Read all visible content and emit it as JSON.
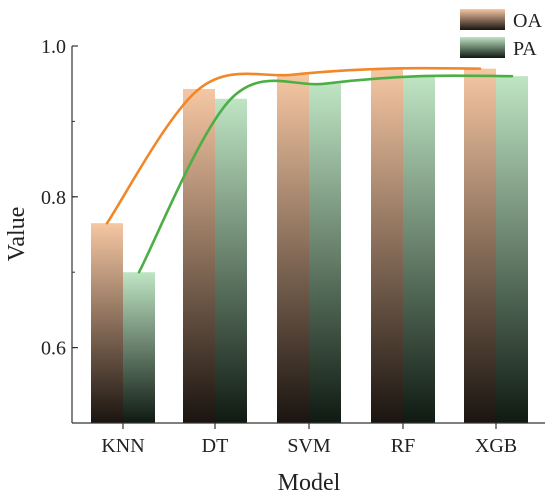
{
  "chart_data": {
    "type": "bar",
    "title": "",
    "xlabel": "Model",
    "ylabel": "Value",
    "categories": [
      "KNN",
      "DT",
      "SVM",
      "RF",
      "XGB"
    ],
    "ylim": [
      0.5,
      1.0
    ],
    "yticks": [
      0.6,
      0.8,
      1.0
    ],
    "ytick_labels": [
      "0.6",
      "0.8",
      "1.0"
    ],
    "grid": false,
    "legend_position": "top-right",
    "series": [
      {
        "name": "OA",
        "values": [
          0.765,
          0.943,
          0.962,
          0.97,
          0.97
        ],
        "color": "#f0882a",
        "bar_top_color": "#f6c7a3",
        "bar_bottom_color": "#1a1410"
      },
      {
        "name": "PA",
        "values": [
          0.7,
          0.93,
          0.95,
          0.96,
          0.96
        ],
        "color": "#4caf45",
        "bar_top_color": "#bfe5c4",
        "bar_bottom_color": "#0f1a12"
      }
    ]
  }
}
